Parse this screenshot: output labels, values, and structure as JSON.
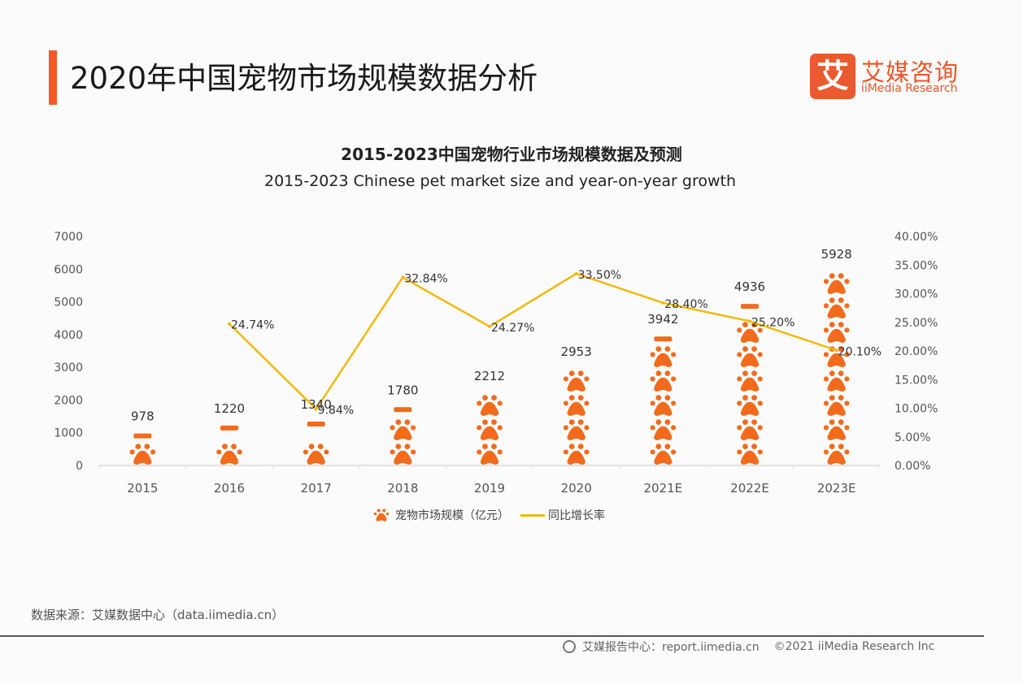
{
  "header": {
    "title": "2020年中国宠物市场规模数据分析",
    "accent_color": "#f05a28",
    "logo": {
      "glyph": "艾",
      "name_cn": "艾媒咨询",
      "name_en": "iiMedia Research",
      "color": "#ea5a2e"
    }
  },
  "chart_data": {
    "type": "bar",
    "title": "2015-2023中国宠物行业市场规模数据及预测",
    "subtitle": "2015-2023 Chinese pet market size and year-on-year growth",
    "categories": [
      "2015",
      "2016",
      "2017",
      "2018",
      "2019",
      "2020",
      "2021E",
      "2022E",
      "2023E"
    ],
    "series": [
      {
        "name": "宠物市场规模（亿元）",
        "type": "bar",
        "axis": "left",
        "marker": "paw-icon",
        "color": "#f26b1d",
        "values": [
          978,
          1220,
          1340,
          1780,
          2212,
          2953,
          3942,
          4936,
          5928
        ],
        "labels": [
          "978",
          "1220",
          "1340",
          "1780",
          "2212",
          "2953",
          "3942",
          "4936",
          "5928"
        ]
      },
      {
        "name": "同比增长率",
        "type": "line",
        "axis": "right",
        "color": "#f2b90f",
        "values": [
          null,
          24.74,
          9.84,
          32.84,
          24.27,
          33.5,
          28.4,
          25.2,
          20.1
        ],
        "labels": [
          null,
          "24.74%",
          "9.84%",
          "32.84%",
          "24.27%",
          "33.50%",
          "28.40%",
          "25.20%",
          "20.10%"
        ]
      }
    ],
    "y_left": {
      "min": 0,
      "max": 7000,
      "step": 1000,
      "ticks": [
        "0",
        "1000",
        "2000",
        "3000",
        "4000",
        "5000",
        "6000",
        "7000"
      ]
    },
    "y_right": {
      "min": 0,
      "max": 40,
      "step": 5,
      "ticks": [
        "0.00%",
        "5.00%",
        "10.00%",
        "15.00%",
        "20.00%",
        "25.00%",
        "30.00%",
        "35.00%",
        "40.00%"
      ]
    },
    "xlabel": "",
    "ylabel": "",
    "grid": false,
    "legend_position": "bottom-center"
  },
  "legend": {
    "items": [
      {
        "label": "宠物市场规模（亿元）",
        "icon": "paw-icon"
      },
      {
        "label": "同比增长率",
        "icon": "line-icon"
      }
    ]
  },
  "footer": {
    "source": "数据来源：艾媒数据中心（data.iimedia.cn）",
    "report_center": "艾媒报告中心：report.iimedia.cn",
    "copyright": "©2021  iiMedia Research  Inc"
  }
}
